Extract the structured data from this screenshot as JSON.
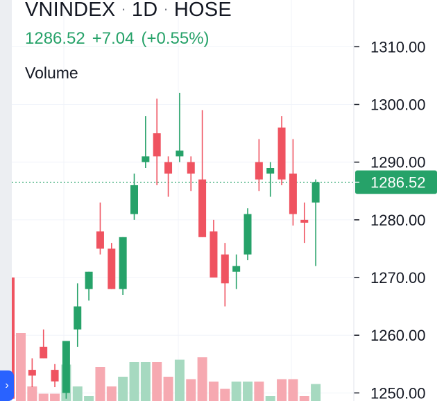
{
  "header": {
    "symbol": "VNINDEX",
    "interval": "1D",
    "exchange": "HOSE",
    "separator": "·",
    "last_price": "1286.52",
    "change": "+7.04",
    "change_pct": "(+0.55%)",
    "volume_label": "Volume"
  },
  "price_badge": "1286.52",
  "expand_glyph": "›",
  "colors": {
    "up": "#26a269",
    "down": "#ef5360",
    "up_volume": "#a6d9c0",
    "down_volume": "#f6a9b1",
    "badge": "#26a269",
    "grid": "#f0f3fa",
    "axis_text": "#131722"
  },
  "chart_data": {
    "type": "candlestick",
    "y_axis": {
      "ticks": [
        1310,
        1300,
        1290,
        1280,
        1270,
        1260,
        1250
      ],
      "tick_labels": [
        "1310.00",
        "1300.00",
        "1290.00",
        "1280.00",
        "1270.00",
        "1260.00",
        "1250.00"
      ],
      "visible_range": [
        1248.6,
        1318.1
      ],
      "position": "right"
    },
    "last_price_line": 1286.52,
    "grid": true,
    "candles": [
      {
        "open": 1270,
        "high": 1270,
        "low": 1249,
        "close": 1249,
        "direction": "down"
      },
      {
        "open": 1254,
        "high": 1256,
        "low": 1251,
        "close": 1253,
        "direction": "down"
      },
      {
        "open": 1258,
        "high": 1261,
        "low": 1256,
        "close": 1256,
        "direction": "down"
      },
      {
        "open": 1254,
        "high": 1255,
        "low": 1251,
        "close": 1252,
        "direction": "down"
      },
      {
        "open": 1250,
        "high": 1259,
        "low": 1249,
        "close": 1259,
        "direction": "up"
      },
      {
        "open": 1261,
        "high": 1269,
        "low": 1258,
        "close": 1265,
        "direction": "up"
      },
      {
        "open": 1268,
        "high": 1271,
        "low": 1266,
        "close": 1271,
        "direction": "up"
      },
      {
        "open": 1278,
        "high": 1283,
        "low": 1274,
        "close": 1275,
        "direction": "down"
      },
      {
        "open": 1275,
        "high": 1276,
        "low": 1268,
        "close": 1268,
        "direction": "down"
      },
      {
        "open": 1268,
        "high": 1277,
        "low": 1267,
        "close": 1277,
        "direction": "up"
      },
      {
        "open": 1281,
        "high": 1288,
        "low": 1280,
        "close": 1286,
        "direction": "up"
      },
      {
        "open": 1290,
        "high": 1298,
        "low": 1289,
        "close": 1291,
        "direction": "up"
      },
      {
        "open": 1295,
        "high": 1301,
        "low": 1286,
        "close": 1291,
        "direction": "down"
      },
      {
        "open": 1290,
        "high": 1291,
        "low": 1284,
        "close": 1288,
        "direction": "down"
      },
      {
        "open": 1291,
        "high": 1302,
        "low": 1290,
        "close": 1292,
        "direction": "up"
      },
      {
        "open": 1290,
        "high": 1291,
        "low": 1285,
        "close": 1288,
        "direction": "down"
      },
      {
        "open": 1287,
        "high": 1299,
        "low": 1277,
        "close": 1277,
        "direction": "down"
      },
      {
        "open": 1278,
        "high": 1280,
        "low": 1270,
        "close": 1270,
        "direction": "down"
      },
      {
        "open": 1274,
        "high": 1276,
        "low": 1265,
        "close": 1269,
        "direction": "down"
      },
      {
        "open": 1271,
        "high": 1274,
        "low": 1268,
        "close": 1272,
        "direction": "up"
      },
      {
        "open": 1274,
        "high": 1282,
        "low": 1273,
        "close": 1281,
        "direction": "up"
      },
      {
        "open": 1290,
        "high": 1294,
        "low": 1285,
        "close": 1287,
        "direction": "down"
      },
      {
        "open": 1288,
        "high": 1290,
        "low": 1284,
        "close": 1289,
        "direction": "up"
      },
      {
        "open": 1296,
        "high": 1298,
        "low": 1286,
        "close": 1287,
        "direction": "down"
      },
      {
        "open": 1288,
        "high": 1294,
        "low": 1279,
        "close": 1281,
        "direction": "down"
      },
      {
        "open": 1280,
        "high": 1283,
        "low": 1276,
        "close": 1279.5,
        "direction": "down"
      },
      {
        "open": 1283,
        "high": 1287,
        "low": 1272,
        "close": 1286.52,
        "direction": "up"
      }
    ],
    "volume": {
      "label": "Volume",
      "values": [
        28,
        6,
        3,
        3,
        15,
        6,
        2,
        14,
        6,
        10,
        16,
        16,
        16,
        10,
        17,
        9,
        18,
        8,
        5,
        8,
        8,
        8,
        2,
        9,
        9,
        2,
        7
      ],
      "directions": [
        "down",
        "down",
        "down",
        "down",
        "up",
        "up",
        "up",
        "down",
        "down",
        "up",
        "up",
        "up",
        "down",
        "down",
        "up",
        "down",
        "down",
        "down",
        "down",
        "up",
        "up",
        "down",
        "up",
        "down",
        "down",
        "down",
        "up"
      ]
    }
  }
}
